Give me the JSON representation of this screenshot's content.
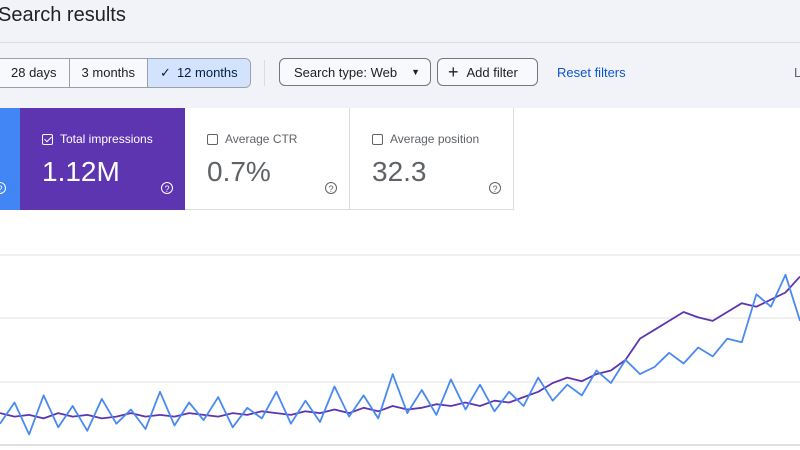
{
  "header": {
    "title": "Search results",
    "date_ranges": [
      "28 days",
      "3 months",
      "12 months"
    ],
    "active_range": "12 months",
    "search_type": "Search type: Web",
    "add_filter": "Add filter",
    "reset_filters": "Reset filters",
    "edge_text": "L"
  },
  "metrics": [
    {
      "label": "Total impressions",
      "value": "1.12M",
      "checked": true,
      "color": "#5e35b1"
    },
    {
      "label": "Average CTR",
      "value": "0.7%",
      "checked": false
    },
    {
      "label": "Average position",
      "value": "32.3",
      "checked": false
    }
  ],
  "clicks_color": "#4285f4",
  "chart_data": {
    "type": "line",
    "series": [
      {
        "color": "#5e35b1",
        "values": [
          18,
          16,
          17,
          15,
          18,
          16,
          17,
          15,
          16,
          18,
          16,
          17,
          16,
          18,
          17,
          16,
          18,
          17,
          19,
          18,
          17,
          19,
          18,
          20,
          18,
          21,
          19,
          22,
          20,
          21,
          23,
          22,
          24,
          22,
          25,
          24,
          27,
          30,
          35,
          38,
          36,
          40,
          42,
          48,
          60,
          65,
          70,
          75,
          72,
          70,
          75,
          80,
          78,
          82,
          86,
          95
        ]
      },
      {
        "color": "#4a8af0",
        "values": [
          12,
          24,
          6,
          28,
          10,
          22,
          8,
          26,
          12,
          20,
          9,
          30,
          11,
          24,
          14,
          27,
          10,
          21,
          15,
          30,
          12,
          25,
          13,
          33,
          16,
          28,
          15,
          40,
          18,
          31,
          17,
          37,
          20,
          34,
          19,
          30,
          22,
          38,
          25,
          34,
          28,
          42,
          35,
          48,
          40,
          44,
          52,
          46,
          55,
          50,
          60,
          58,
          85,
          78,
          96,
          70
        ]
      }
    ],
    "ylim": [
      0,
      110
    ],
    "grid": true
  }
}
